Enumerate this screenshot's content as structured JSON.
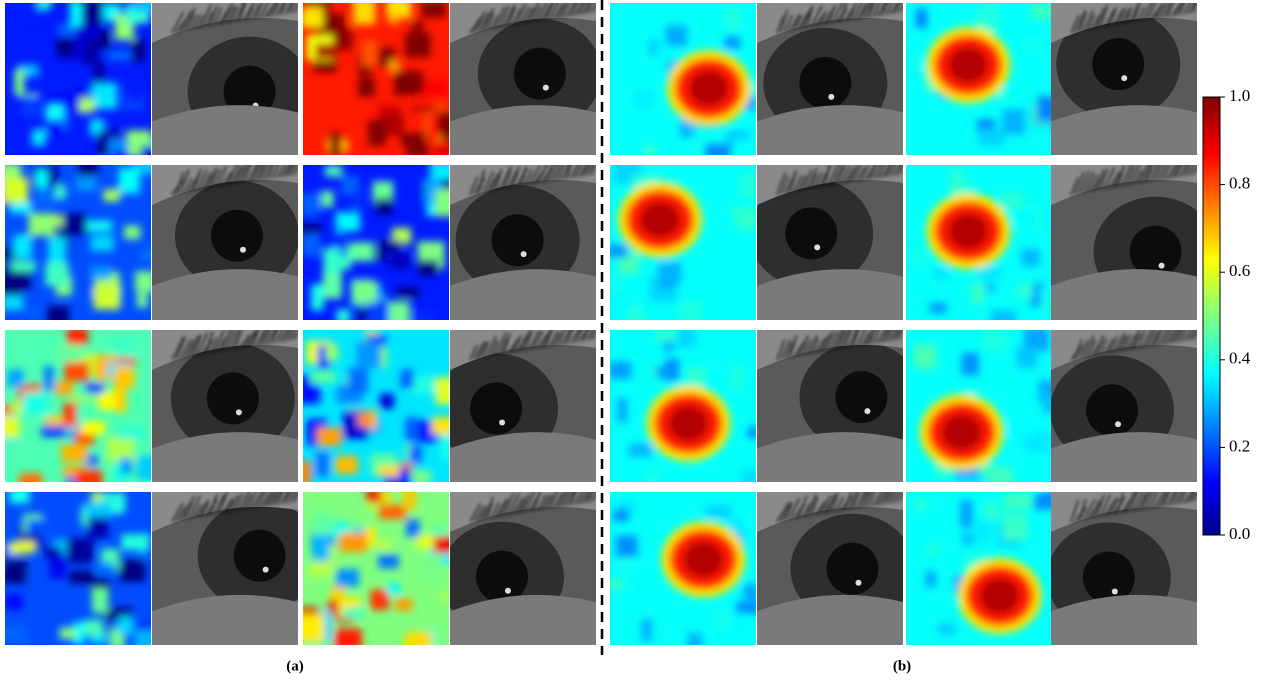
{
  "colorbar": {
    "lim": [
      0,
      1
    ],
    "ticks": [
      {
        "value": 0,
        "label": "0.0"
      },
      {
        "value": 0.2,
        "label": "0.2"
      },
      {
        "value": 0.4,
        "label": "0.4"
      },
      {
        "value": 0.6,
        "label": "0.6"
      },
      {
        "value": 0.8,
        "label": "0.8"
      },
      {
        "value": 1,
        "label": "1.0"
      }
    ]
  },
  "panel_labels": [
    "(a)",
    "(b)"
  ]
}
